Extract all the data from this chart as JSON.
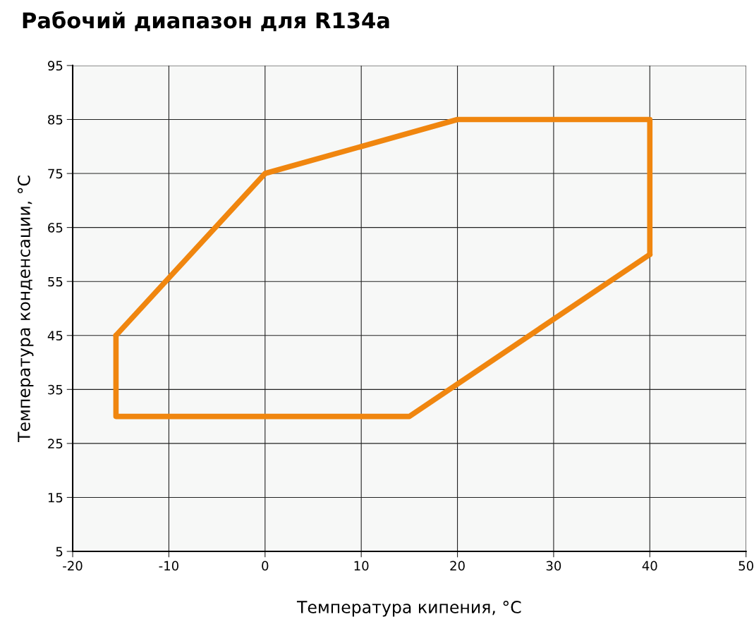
{
  "chart_data": {
    "type": "line",
    "title": "Рабочий диапазон для R134a",
    "xlabel": "Температура кипения, °C",
    "ylabel": "Температура конденсации, °C",
    "series": [
      {
        "color": "#f0860f",
        "x": [
          -15.5,
          0,
          20,
          40,
          40
        ],
        "values": [
          45,
          75,
          85,
          85,
          60
        ]
      },
      {
        "color": "#f0860f",
        "x": [
          -15.5,
          -15.5,
          15,
          40
        ],
        "values": [
          45,
          30,
          30,
          60
        ]
      }
    ],
    "xlim": [
      -20,
      50
    ],
    "xticks": [
      -20,
      -10,
      0,
      10,
      20,
      30,
      40,
      50
    ],
    "ylim": [
      5,
      95
    ],
    "yticks": [
      5,
      15,
      25,
      35,
      45,
      55,
      65,
      75,
      85,
      95
    ],
    "grid": true,
    "marker": "none",
    "line_style": "solid",
    "legend": false
  }
}
